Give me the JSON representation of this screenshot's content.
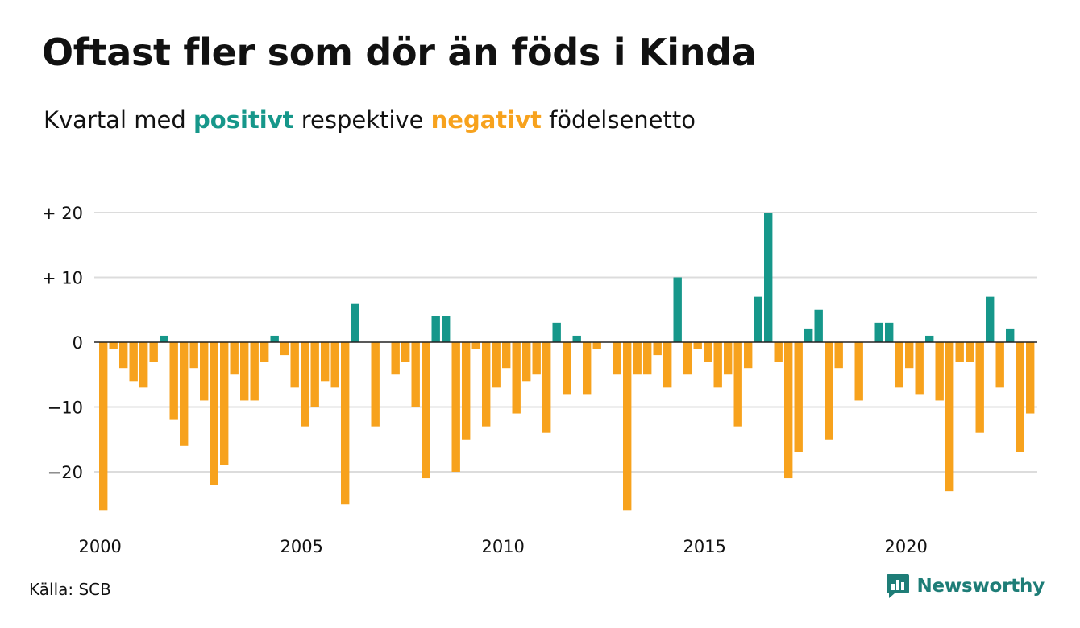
{
  "title": "Oftast fler som dör än föds i Kinda",
  "subtitle": {
    "prefix": "Kvartal med",
    "positive_word": "positivt",
    "middle": "respektive",
    "negative_word": "negativt",
    "suffix": "födelsenetto"
  },
  "colors": {
    "positive": "#16978a",
    "negative": "#f7a21d",
    "gridline": "#dcdcdc",
    "baseline": "#222222",
    "brand": "#1e7d77"
  },
  "footer": {
    "source": "Källa: SCB",
    "brand": "Newsworthy",
    "brand_icon": "bar-chart-speech-bubble-icon"
  },
  "chart_data": {
    "type": "bar",
    "x_start": "2000K1",
    "x_frequency": "quarter",
    "ylim": [
      -27,
      21
    ],
    "grid": true,
    "yticks": [
      {
        "value": 20,
        "label": "+ 20"
      },
      {
        "value": 10,
        "label": "+ 10"
      },
      {
        "value": 0,
        "label": "0"
      },
      {
        "value": -10,
        "label": "−10"
      },
      {
        "value": -20,
        "label": "−20"
      }
    ],
    "xticks": [
      "2000",
      "2005",
      "2010",
      "2015",
      "2020"
    ],
    "values": [
      -26,
      -1,
      -4,
      -6,
      -7,
      -3,
      1,
      -12,
      -16,
      -4,
      -9,
      -22,
      -19,
      -5,
      -9,
      -9,
      -3,
      1,
      -2,
      -7,
      -13,
      -10,
      -6,
      -7,
      -25,
      6,
      0,
      -13,
      0,
      -5,
      -3,
      -10,
      -21,
      4,
      4,
      -20,
      -15,
      -1,
      -13,
      -7,
      -4,
      -11,
      -6,
      -5,
      -14,
      3,
      -8,
      1,
      -8,
      -1,
      0,
      -5,
      -26,
      -5,
      -5,
      -2,
      -7,
      10,
      -5,
      -1,
      -3,
      -7,
      -5,
      -13,
      -4,
      7,
      20,
      -3,
      -21,
      -17,
      2,
      5,
      -15,
      -4,
      0,
      -9,
      0,
      3,
      3,
      -7,
      -4,
      -8,
      1,
      -9,
      -23,
      -3,
      -3,
      -14,
      7,
      -7,
      2,
      -17,
      -11
    ]
  }
}
